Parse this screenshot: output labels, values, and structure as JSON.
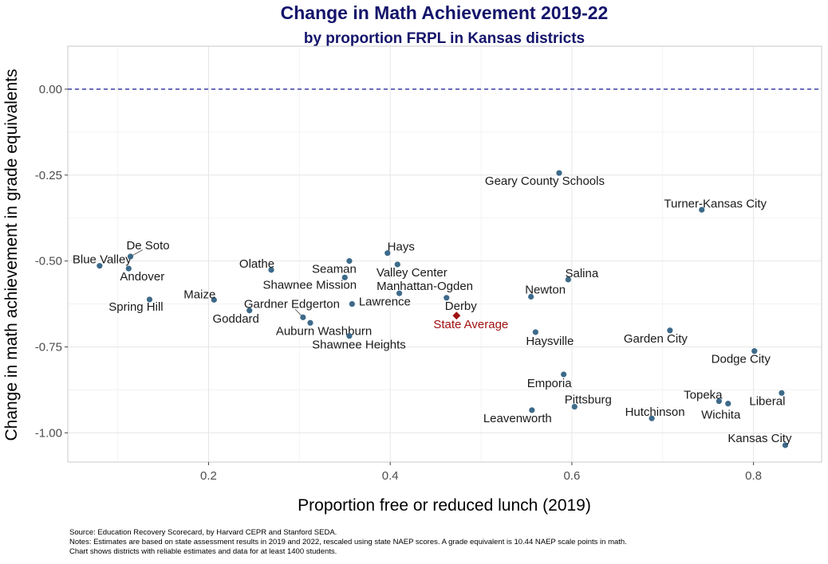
{
  "chart_data": {
    "type": "scatter",
    "title": "Change in Math Achievement 2019-22",
    "subtitle": "by proportion FRPL in Kansas districts",
    "xlabel": "Proportion free or reduced lunch (2019)",
    "ylabel": "Change in math achievement in grade equivalents",
    "xlim": [
      0.045,
      0.875
    ],
    "ylim": [
      -1.085,
      0.125
    ],
    "xticks": [
      {
        "v": 0.2,
        "label": "0.2"
      },
      {
        "v": 0.4,
        "label": "0.4"
      },
      {
        "v": 0.6,
        "label": "0.6"
      },
      {
        "v": 0.8,
        "label": "0.8"
      }
    ],
    "yticks": [
      {
        "v": 0,
        "label": "0.00"
      },
      {
        "v": -0.25,
        "label": "-0.25"
      },
      {
        "v": -0.5,
        "label": "-0.50"
      },
      {
        "v": -0.75,
        "label": "-0.75"
      },
      {
        "v": -1,
        "label": "-1.00"
      }
    ],
    "grid": true,
    "reference_line": {
      "y": 0,
      "style": "dashed",
      "color": "#2a2aa0"
    },
    "point_color": "#3d6a8a",
    "highlight_color": "#a01010",
    "points": [
      {
        "name": "Blue Valley",
        "x": 0.08,
        "y": -0.514
      },
      {
        "name": "De Soto",
        "x": 0.114,
        "y": -0.487
      },
      {
        "name": "Andover",
        "x": 0.112,
        "y": -0.522
      },
      {
        "name": "Spring Hill",
        "x": 0.135,
        "y": -0.612
      },
      {
        "name": "Maize",
        "x": 0.206,
        "y": -0.613
      },
      {
        "name": "Olathe",
        "x": 0.269,
        "y": -0.526
      },
      {
        "name": "Seaman",
        "x": 0.355,
        "y": -0.5
      },
      {
        "name": "Shawnee Mission",
        "x": 0.35,
        "y": -0.548
      },
      {
        "name": "Goddard",
        "x": 0.245,
        "y": -0.644
      },
      {
        "name": "Gardner Edgerton",
        "x": 0.304,
        "y": -0.664
      },
      {
        "name": "Lawrence",
        "x": 0.358,
        "y": -0.625
      },
      {
        "name": "Auburn Washburn",
        "x": 0.312,
        "y": -0.68
      },
      {
        "name": "Shawnee Heights",
        "x": 0.355,
        "y": -0.718
      },
      {
        "name": "Hays",
        "x": 0.397,
        "y": -0.477
      },
      {
        "name": "Valley Center",
        "x": 0.408,
        "y": -0.51
      },
      {
        "name": "Manhattan-Ogden",
        "x": 0.41,
        "y": -0.594
      },
      {
        "name": "Derby",
        "x": 0.462,
        "y": -0.607
      },
      {
        "name": "State Average",
        "x": 0.473,
        "y": -0.659,
        "highlight": true
      },
      {
        "name": "Newton",
        "x": 0.555,
        "y": -0.604
      },
      {
        "name": "Haysville",
        "x": 0.56,
        "y": -0.707
      },
      {
        "name": "Salina",
        "x": 0.596,
        "y": -0.554
      },
      {
        "name": "Geary County Schools",
        "x": 0.586,
        "y": -0.244
      },
      {
        "name": "Turner-Kansas City",
        "x": 0.743,
        "y": -0.351
      },
      {
        "name": "Garden City",
        "x": 0.708,
        "y": -0.702
      },
      {
        "name": "Dodge City",
        "x": 0.801,
        "y": -0.762
      },
      {
        "name": "Emporia",
        "x": 0.591,
        "y": -0.83
      },
      {
        "name": "Pittsburg",
        "x": 0.603,
        "y": -0.924
      },
      {
        "name": "Leavenworth",
        "x": 0.556,
        "y": -0.934
      },
      {
        "name": "Hutchinson",
        "x": 0.688,
        "y": -0.958
      },
      {
        "name": "Topeka",
        "x": 0.762,
        "y": -0.908
      },
      {
        "name": "Wichita",
        "x": 0.772,
        "y": -0.915
      },
      {
        "name": "Liberal",
        "x": 0.831,
        "y": -0.884
      },
      {
        "name": "Kansas City",
        "x": 0.835,
        "y": -1.036
      }
    ]
  },
  "footer": {
    "source": "Source: Education Recovery Scorecard, by Harvard CEPR and Stanford SEDA.",
    "notes": "Notes: Estimates are based on state assessment results in 2019 and 2022, rescaled using state NAEP scores. A grade equivalent is 10.44 NAEP scale points in math.",
    "coverage": "Chart shows districts with reliable estimates and data for at least 1400 students."
  }
}
